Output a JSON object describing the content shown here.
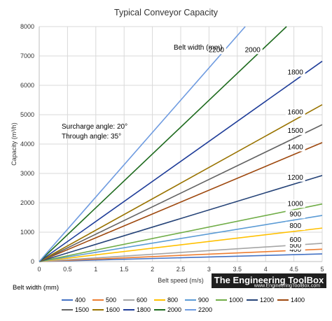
{
  "chart_data": {
    "type": "line",
    "title": "Typical Conveyor Capacity",
    "xlabel": "Belt speed (m/s)",
    "ylabel": "Capacity (m³/h)",
    "xlim": [
      0,
      5
    ],
    "ylim": [
      0,
      8000
    ],
    "x_ticks": [
      "0",
      "0.5",
      "1",
      "1.5",
      "2",
      "2.5",
      "3",
      "3.5",
      "4",
      "4.5",
      "5"
    ],
    "y_ticks": [
      "0",
      "1000",
      "2000",
      "3000",
      "4000",
      "5000",
      "6000",
      "7000",
      "8000"
    ],
    "grid": true,
    "legend_title": "Belt width (mm)",
    "legend_position": "bottom",
    "annotations": [
      "Surcharge angle: 20°",
      "Through angle: 35°"
    ],
    "series_label_header": "Belt width (mm)",
    "series": [
      {
        "name": "400",
        "color": "#4472C4",
        "x": [
          0,
          5
        ],
        "y": [
          0,
          260
        ],
        "label": "400"
      },
      {
        "name": "500",
        "color": "#ED7D31",
        "x": [
          0,
          5
        ],
        "y": [
          0,
          420
        ],
        "label": "500"
      },
      {
        "name": "600",
        "color": "#A5A5A5",
        "x": [
          0,
          5
        ],
        "y": [
          0,
          620
        ],
        "label": "600"
      },
      {
        "name": "800",
        "color": "#FFC000",
        "x": [
          0,
          5
        ],
        "y": [
          0,
          1140
        ],
        "label": "800"
      },
      {
        "name": "900",
        "color": "#5B9BD5",
        "x": [
          0,
          5
        ],
        "y": [
          0,
          1570
        ],
        "label": "900"
      },
      {
        "name": "1000",
        "color": "#70AD47",
        "x": [
          0,
          5
        ],
        "y": [
          0,
          1960
        ],
        "label": "1000"
      },
      {
        "name": "1200",
        "color": "#264478",
        "x": [
          0,
          5
        ],
        "y": [
          0,
          2930
        ],
        "label": "1200"
      },
      {
        "name": "1400",
        "color": "#9E480E",
        "x": [
          0,
          5
        ],
        "y": [
          0,
          4050
        ],
        "label": "1400"
      },
      {
        "name": "1500",
        "color": "#636363",
        "x": [
          0,
          5
        ],
        "y": [
          0,
          4660
        ],
        "label": "1500"
      },
      {
        "name": "1600",
        "color": "#997300",
        "x": [
          0,
          5
        ],
        "y": [
          0,
          5340
        ],
        "label": "1600"
      },
      {
        "name": "1800",
        "color": "#1F3D99",
        "x": [
          0,
          5
        ],
        "y": [
          0,
          6820
        ],
        "label": "1800"
      },
      {
        "name": "2000",
        "color": "#1E6B1E",
        "x": [
          0,
          4.37
        ],
        "y": [
          0,
          8000
        ],
        "label": "2000"
      },
      {
        "name": "2200",
        "color": "#6E9BE0",
        "x": [
          0,
          3.64
        ],
        "y": [
          0,
          8000
        ],
        "label": "2200"
      }
    ]
  },
  "watermark": {
    "title": "The Engineering ToolBox",
    "url": "www.EngineeringToolBox.com"
  }
}
